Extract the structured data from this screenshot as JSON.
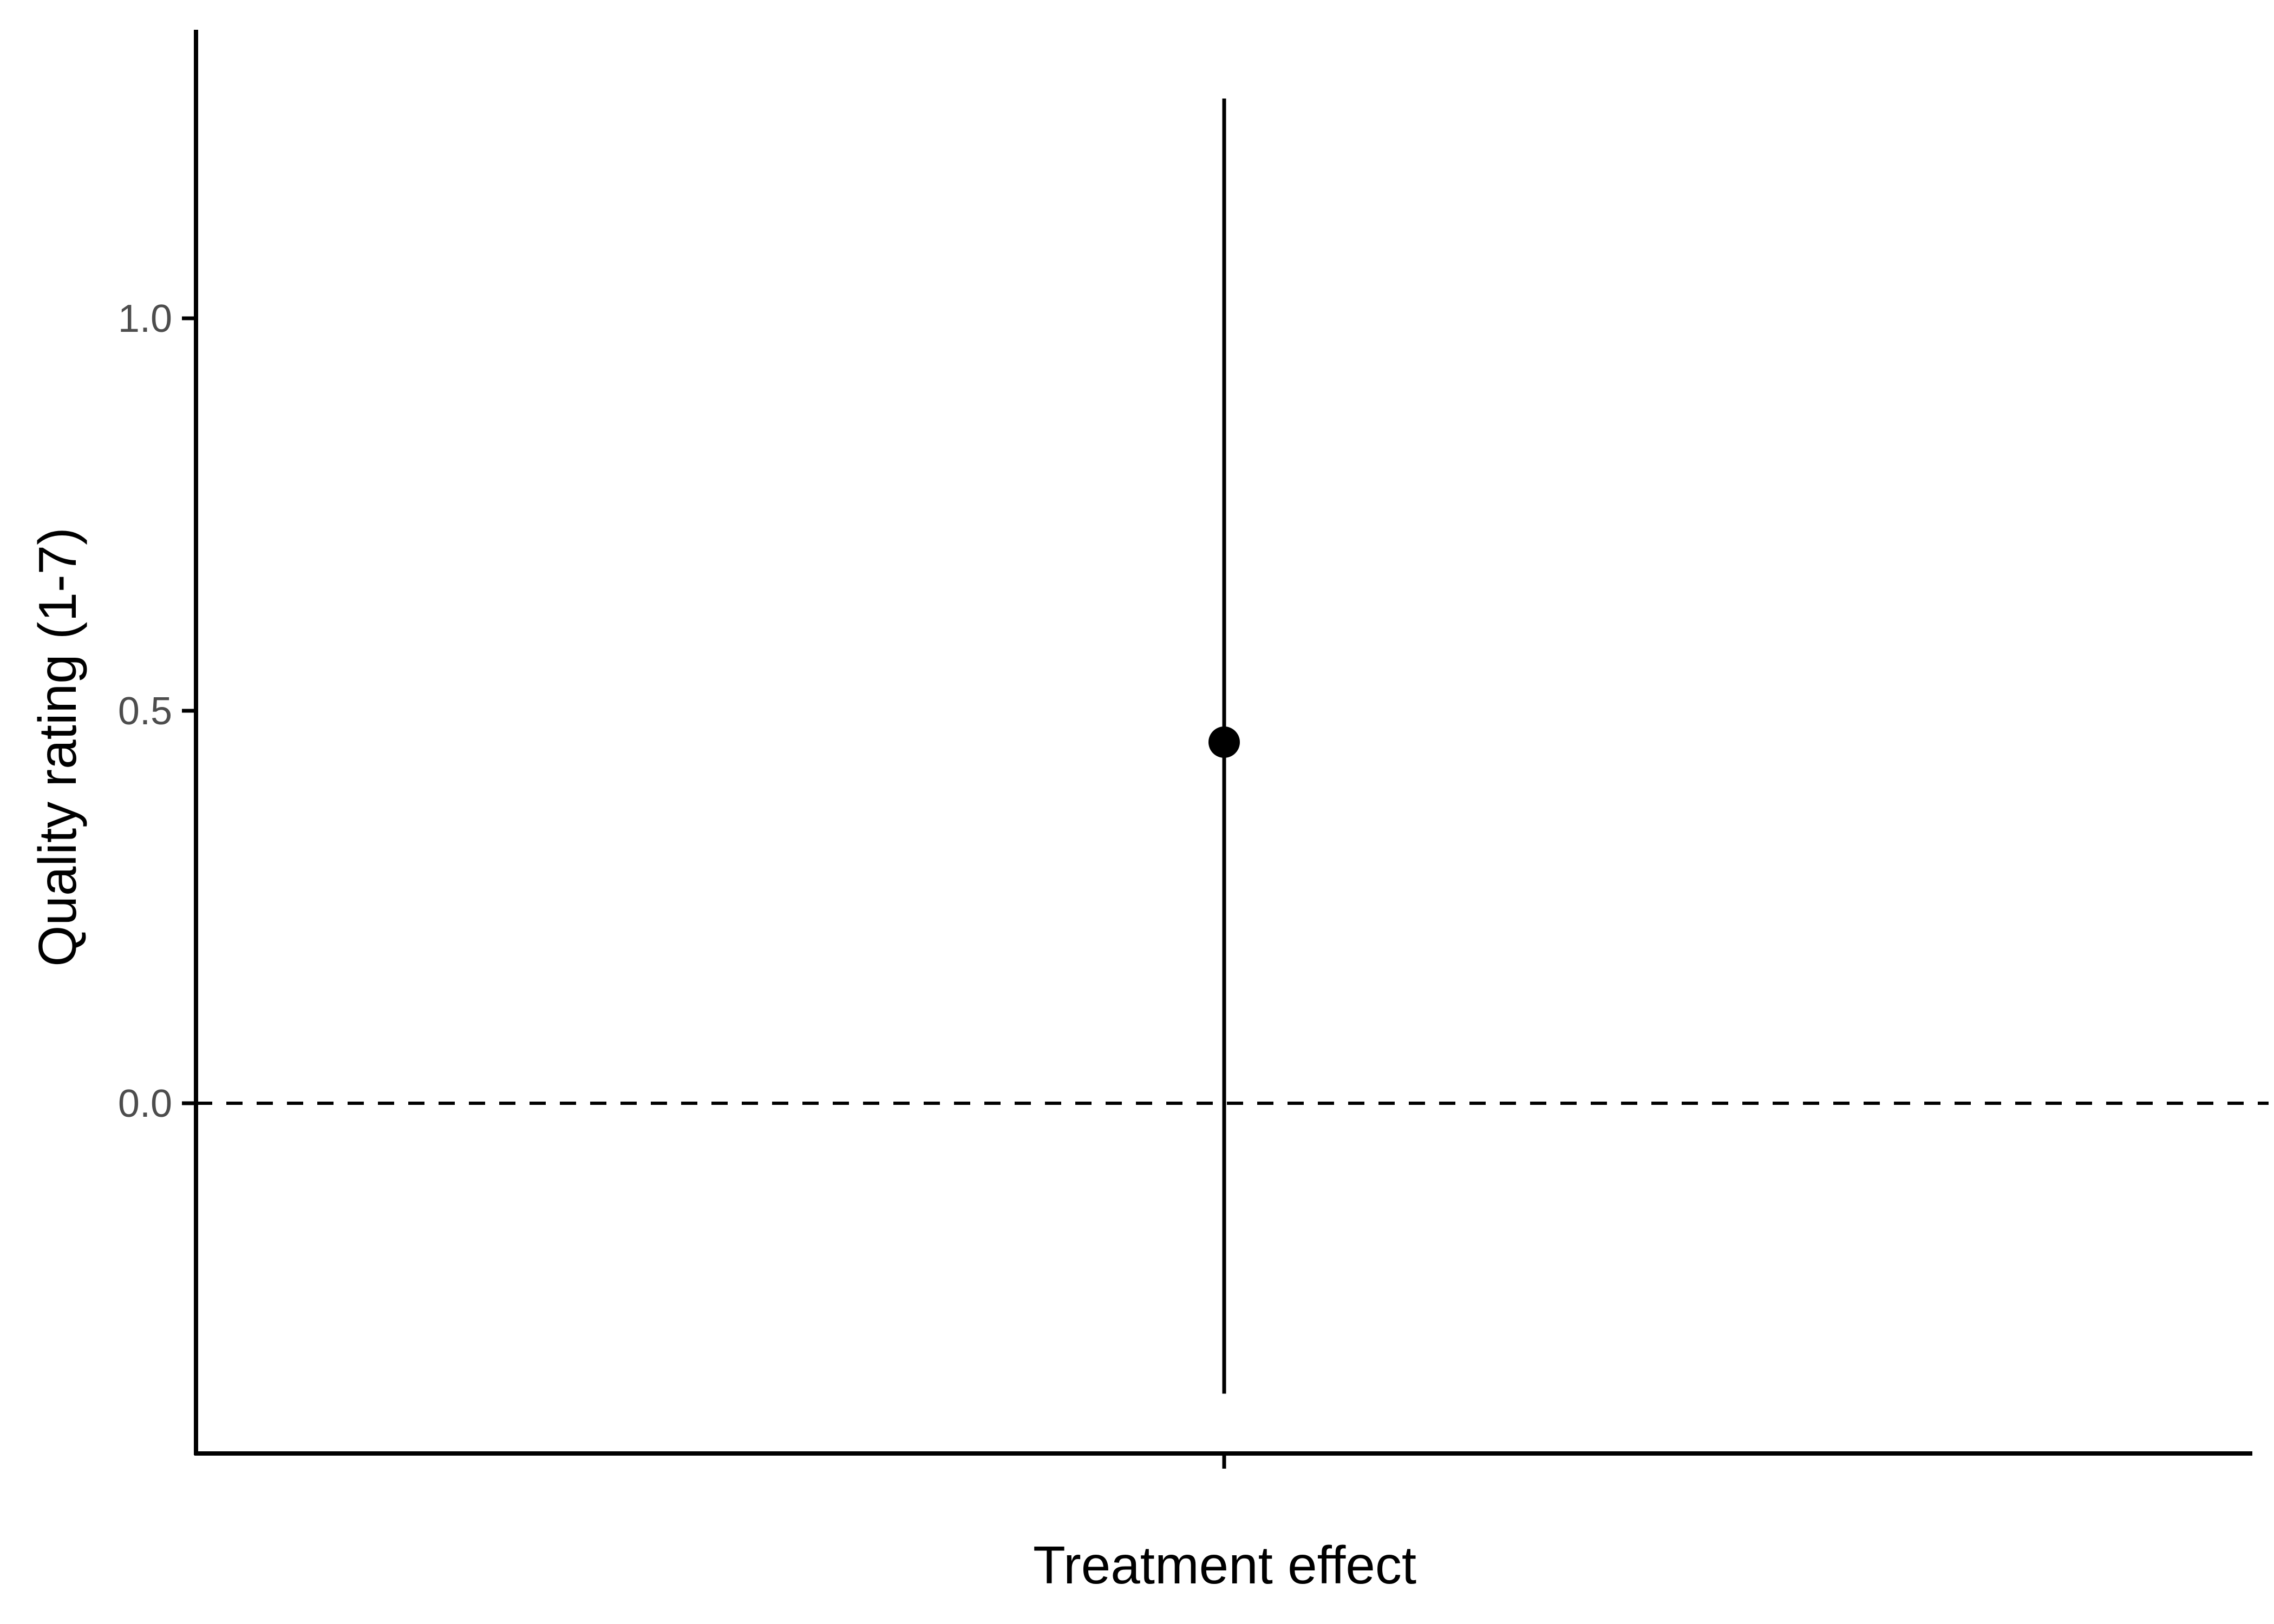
{
  "chart_data": {
    "type": "pointrange",
    "title": "",
    "xlabel": "Treatment effect",
    "ylabel": "Quality rating (1-7)",
    "categories": [
      ""
    ],
    "points": [
      {
        "x": "",
        "y": 0.46,
        "lower": -0.37,
        "upper": 1.28
      }
    ],
    "yticks": [
      0.0,
      0.5,
      1.0
    ],
    "ytick_labels": [
      "0.0",
      "0.5",
      "1.0"
    ],
    "ylim": [
      -0.46,
      1.38
    ],
    "reference_line": {
      "y": 0.0,
      "style": "dashed"
    },
    "grid": false,
    "legend": "none",
    "colors": {
      "point": "#000000",
      "axis": "#000000",
      "tick_text": "#4d4d4d"
    }
  }
}
